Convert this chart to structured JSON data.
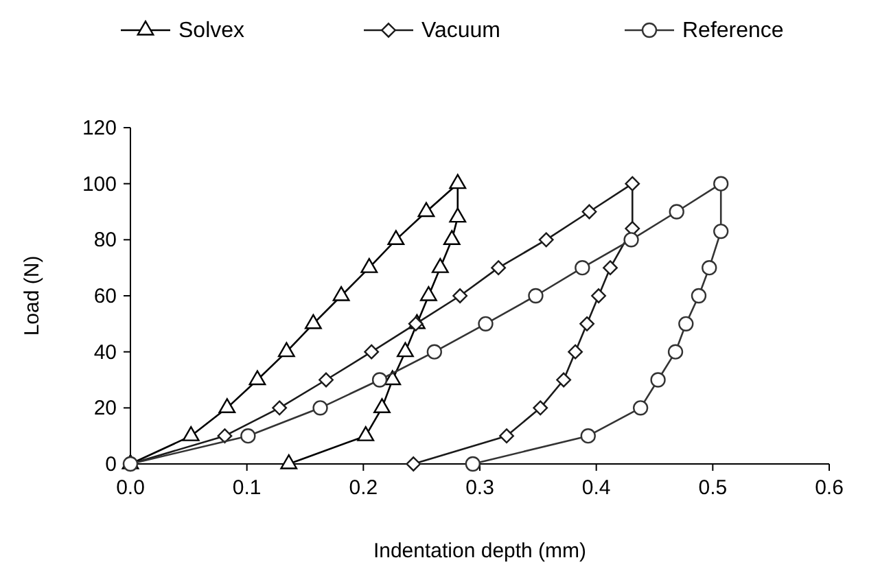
{
  "chart_data": {
    "type": "line",
    "xlabel": "Indentation depth (mm)",
    "ylabel": "Load (N)",
    "xlim": [
      0,
      0.6
    ],
    "ylim": [
      0,
      120
    ],
    "xticks": [
      {
        "value": 0,
        "label": "0.0"
      },
      0.1,
      0.2,
      0.3,
      0.4,
      0.5,
      0.6
    ],
    "yticks": [
      0,
      20,
      40,
      60,
      80,
      100,
      120
    ],
    "grid": false,
    "legend": "top",
    "line_style": "solid",
    "series": [
      {
        "name": "Solvex",
        "color": "#000000",
        "marker": "triangle",
        "x": [
          0,
          0.052,
          0.083,
          0.109,
          0.134,
          0.157,
          0.181,
          0.205,
          0.228,
          0.254,
          0.281,
          0.281,
          0.276,
          0.266,
          0.256,
          0.246,
          0.236,
          0.225,
          0.216,
          0.202,
          0.136
        ],
        "values": [
          0,
          10,
          20,
          30,
          40,
          50,
          60,
          70,
          80,
          90,
          100,
          88,
          80,
          70,
          60,
          50,
          40,
          30,
          20,
          10,
          0
        ]
      },
      {
        "name": "Vacuum",
        "color": "#1a1a1a",
        "marker": "diamond",
        "x": [
          0,
          0.081,
          0.128,
          0.168,
          0.207,
          0.245,
          0.283,
          0.316,
          0.357,
          0.394,
          0.431,
          0.431,
          0.412,
          0.402,
          0.392,
          0.382,
          0.372,
          0.352,
          0.323,
          0.243
        ],
        "values": [
          0,
          10,
          20,
          30,
          40,
          50,
          60,
          70,
          80,
          90,
          100,
          84,
          70,
          60,
          50,
          40,
          30,
          20,
          10,
          0
        ]
      },
      {
        "name": "Reference",
        "color": "#333333",
        "marker": "circle",
        "x": [
          0,
          0.101,
          0.163,
          0.214,
          0.261,
          0.305,
          0.348,
          0.388,
          0.43,
          0.469,
          0.507,
          0.507,
          0.497,
          0.488,
          0.477,
          0.468,
          0.453,
          0.438,
          0.393,
          0.294
        ],
        "values": [
          0,
          10,
          20,
          30,
          40,
          50,
          60,
          70,
          80,
          90,
          100,
          83,
          70,
          60,
          50,
          40,
          30,
          20,
          10,
          0
        ]
      }
    ]
  }
}
